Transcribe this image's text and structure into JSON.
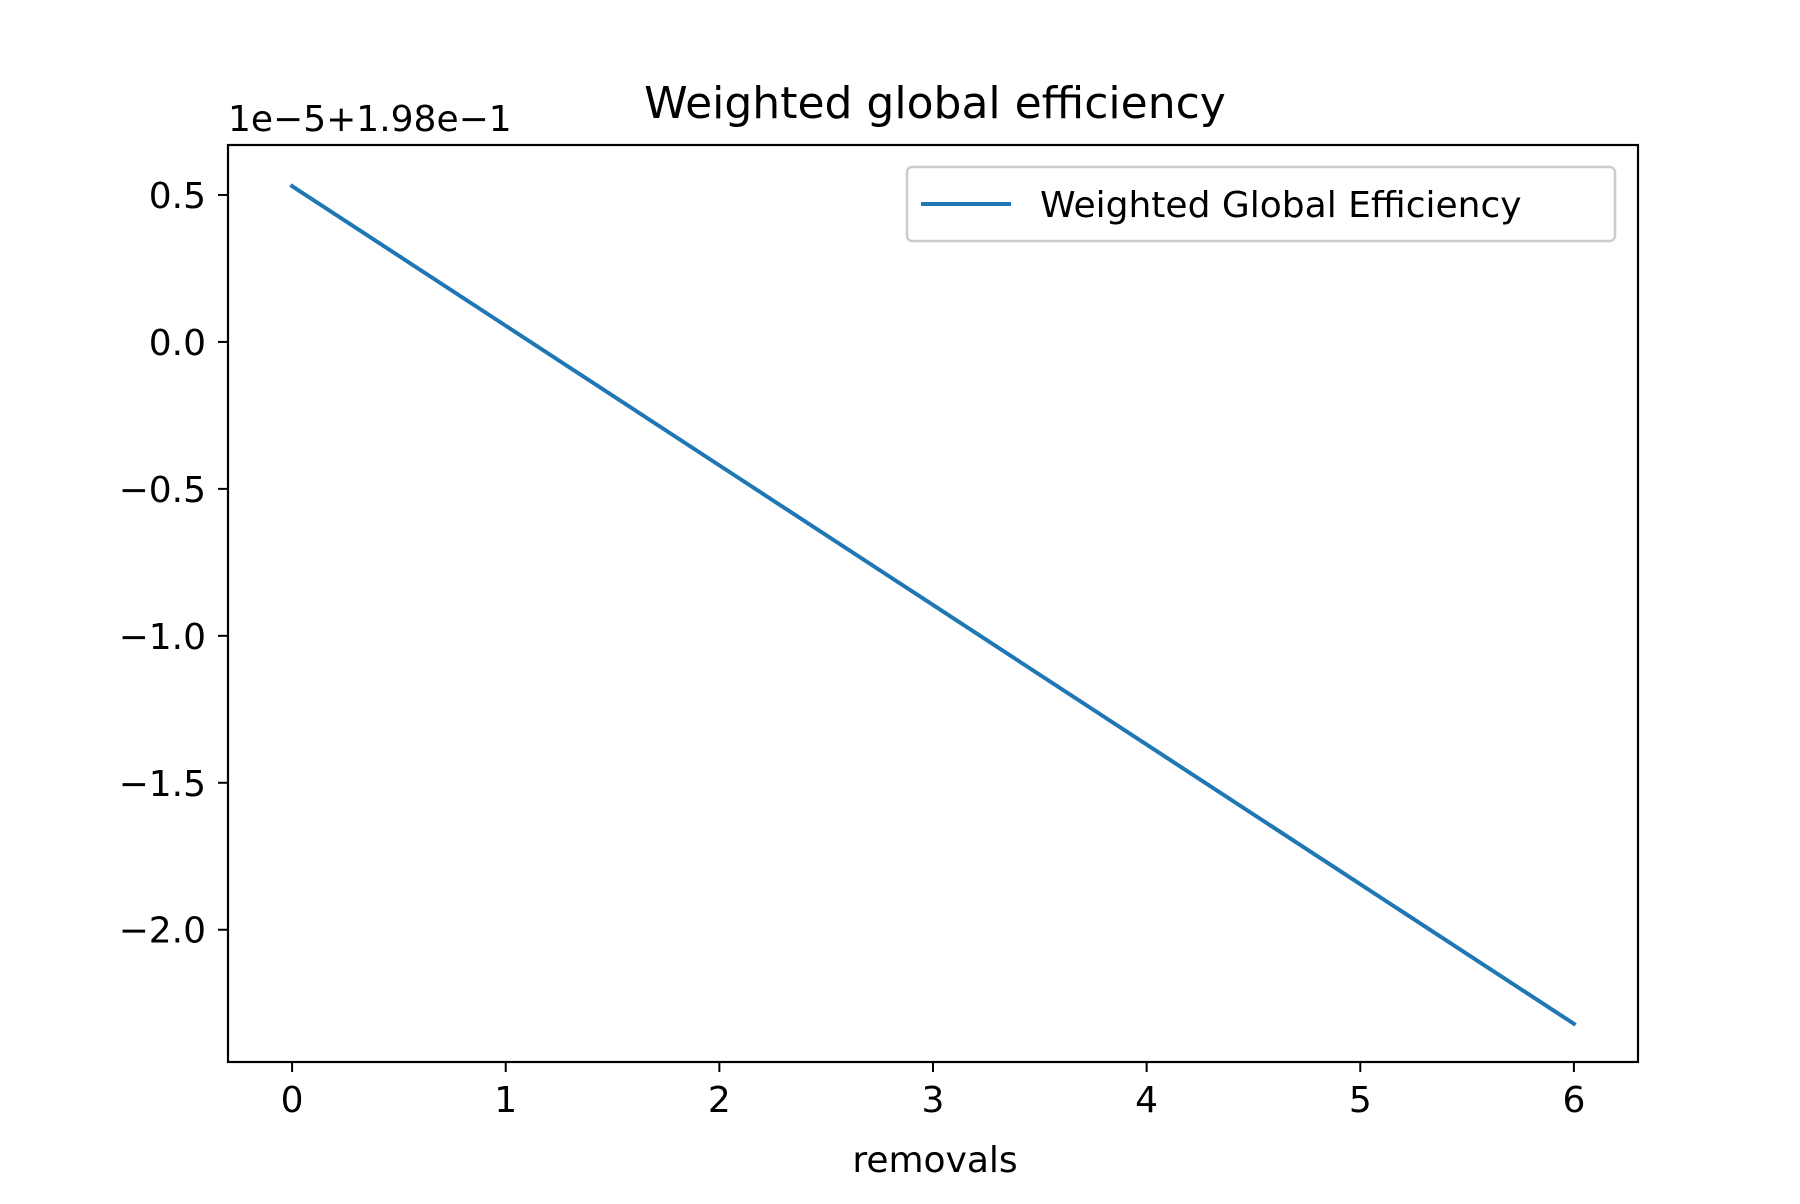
{
  "chart_data": {
    "type": "line",
    "title": "Weighted global efficiency",
    "xlabel": "removals",
    "ylabel": "",
    "offset_text": "1e−5+1.98e−1",
    "x": [
      0,
      1,
      2,
      3,
      4,
      5,
      6
    ],
    "xlim": [
      -0.3,
      6.3
    ],
    "ylim": [
      -2.45,
      0.67
    ],
    "xticks": [
      0,
      1,
      2,
      3,
      4,
      5,
      6
    ],
    "xtick_labels": [
      "0",
      "1",
      "2",
      "3",
      "4",
      "5",
      "6"
    ],
    "yticks": [
      0.5,
      0.0,
      -0.5,
      -1.0,
      -1.5,
      -2.0
    ],
    "ytick_labels": [
      "0.5",
      "0.0",
      "−0.5",
      "−1.0",
      "−1.5",
      "−2.0"
    ],
    "grid": false,
    "legend_position": "top-right",
    "series": [
      {
        "name": "Weighted Global Efficiency",
        "color": "#1f77b4",
        "values": [
          0.53,
          0.055,
          -0.42,
          -0.895,
          -1.37,
          -1.845,
          -2.32
        ]
      }
    ]
  }
}
